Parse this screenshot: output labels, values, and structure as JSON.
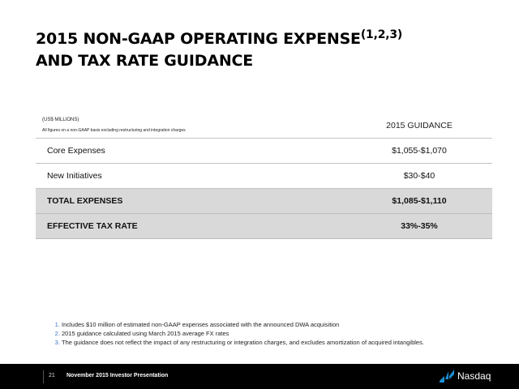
{
  "title": {
    "line1": "2015 NON-GAAP OPERATING EXPENSE",
    "superscript": "(1,2,3)",
    "line2": "AND TAX RATE GUIDANCE"
  },
  "table": {
    "units": "(US$ MILLIONS)",
    "note": "All figures on a non-GAAP basis excluding restructuring and integration charges",
    "column_header": "2015 GUIDANCE",
    "rows": [
      {
        "label": "Core Expenses",
        "value": "$1,055-$1,070"
      },
      {
        "label": "New Initiatives",
        "value": "$30-$40"
      },
      {
        "label": "TOTAL EXPENSES",
        "value": "$1,085-$1,110"
      },
      {
        "label": "EFFECTIVE TAX RATE",
        "value": "33%-35%"
      }
    ]
  },
  "footnotes": [
    "Includes $10 million of estimated non-GAAP expenses associated with the announced DWA acquisition",
    "2015 guidance calculated using March 2015 average FX rates",
    "The guidance does not reflect the impact of any restructuring or integration charges, and excludes amortization of acquired intangibles."
  ],
  "footer": {
    "page_number": "21",
    "text": "November 2015 Investor Presentation",
    "logo_text": "Nasdaq",
    "logo_icon": "nasdaq-logo-icon"
  },
  "colors": {
    "footer_bg": "#000000",
    "shaded_row": "#d9d9d9",
    "footnote_marker": "#3a74c4",
    "logo_blue": "#1a8fd6"
  }
}
